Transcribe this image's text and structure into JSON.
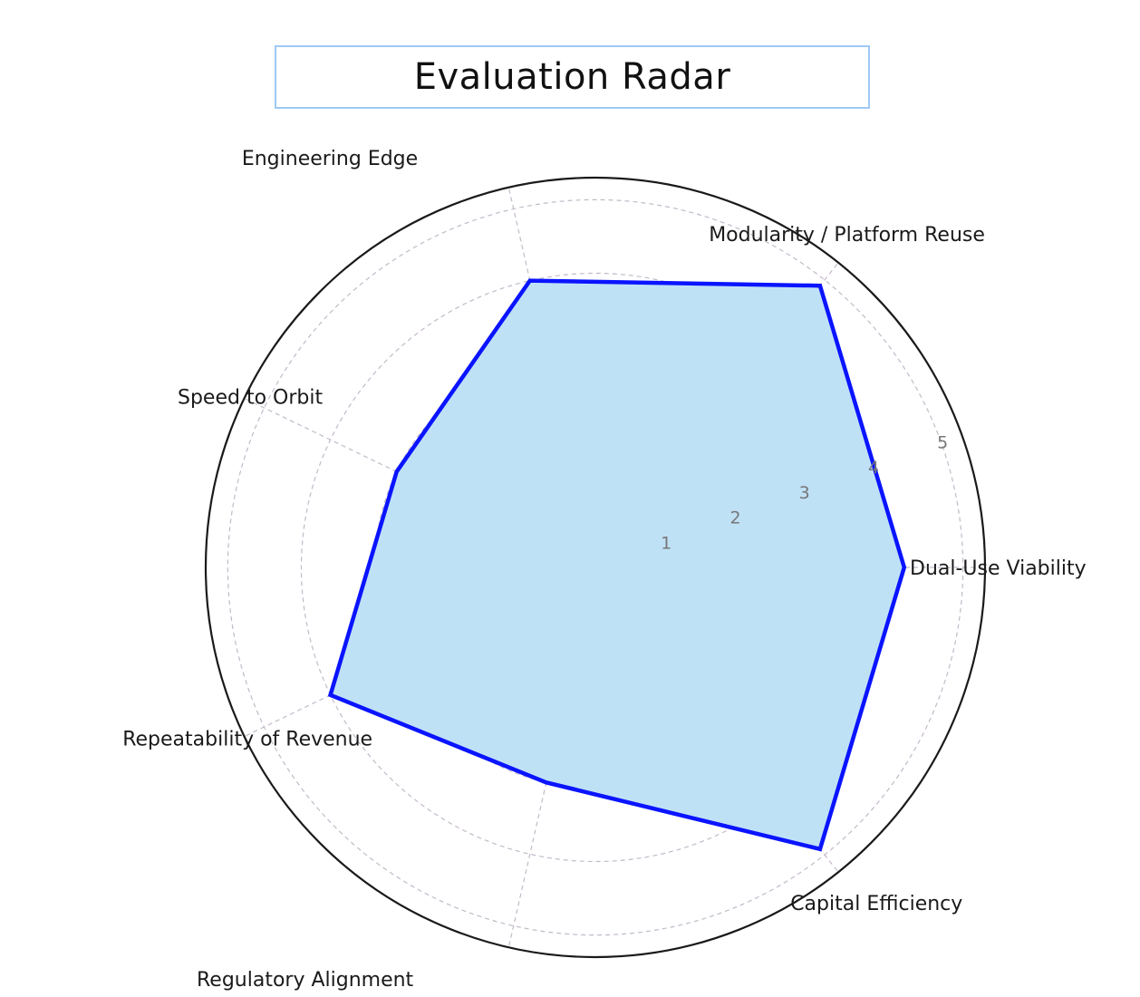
{
  "chart_data": {
    "type": "radar",
    "title": "Evaluation Radar",
    "axes": [
      "Dual-Use Viability",
      "Modularity / Platform Reuse",
      "Engineering Edge",
      "Speed to Orbit",
      "Repeatability of Revenue",
      "Regulatory Alignment",
      "Capital Efficiency"
    ],
    "values": [
      4.2,
      4.9,
      4.0,
      3.0,
      4.0,
      3.0,
      4.9
    ],
    "rmax": 5.3,
    "rticks": [
      1,
      2,
      3,
      4,
      5
    ],
    "grid": true,
    "colors": {
      "line": "#0a14ff",
      "fill": "#bfe1f6",
      "grid": "#c4b9c9",
      "outer": "#1a1a1a",
      "title_border": "#9ec9f5"
    }
  }
}
